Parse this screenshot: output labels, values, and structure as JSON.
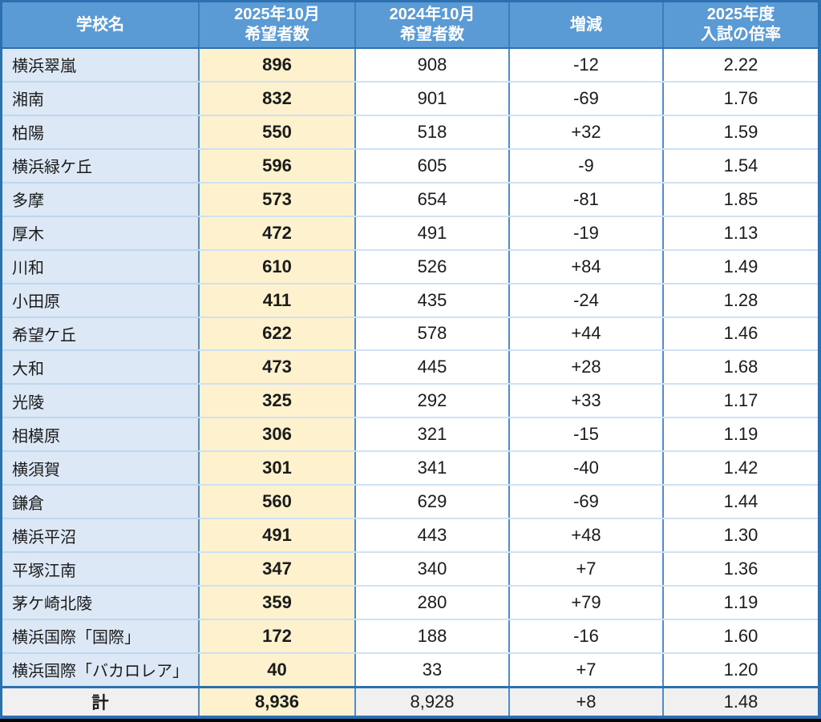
{
  "chart_data": {
    "type": "table",
    "title": "",
    "columns": [
      "学校名",
      "2025年10月\n希望者数",
      "2024年10月\n希望者数",
      "増減",
      "2025年度\n入試の倍率"
    ],
    "rows": [
      [
        "横浜翠嵐",
        "896",
        "908",
        "-12",
        "2.22"
      ],
      [
        "湘南",
        "832",
        "901",
        "-69",
        "1.76"
      ],
      [
        "柏陽",
        "550",
        "518",
        "+32",
        "1.59"
      ],
      [
        "横浜緑ケ丘",
        "596",
        "605",
        "-9",
        "1.54"
      ],
      [
        "多摩",
        "573",
        "654",
        "-81",
        "1.85"
      ],
      [
        "厚木",
        "472",
        "491",
        "-19",
        "1.13"
      ],
      [
        "川和",
        "610",
        "526",
        "+84",
        "1.49"
      ],
      [
        "小田原",
        "411",
        "435",
        "-24",
        "1.28"
      ],
      [
        "希望ケ丘",
        "622",
        "578",
        "+44",
        "1.46"
      ],
      [
        "大和",
        "473",
        "445",
        "+28",
        "1.68"
      ],
      [
        "光陵",
        "325",
        "292",
        "+33",
        "1.17"
      ],
      [
        "相模原",
        "306",
        "321",
        "-15",
        "1.19"
      ],
      [
        "横須賀",
        "301",
        "341",
        "-40",
        "1.42"
      ],
      [
        "鎌倉",
        "560",
        "629",
        "-69",
        "1.44"
      ],
      [
        "横浜平沼",
        "491",
        "443",
        "+48",
        "1.30"
      ],
      [
        "平塚江南",
        "347",
        "340",
        "+7",
        "1.36"
      ],
      [
        "茅ケ崎北陵",
        "359",
        "280",
        "+79",
        "1.19"
      ],
      [
        "横浜国際「国際」",
        "172",
        "188",
        "-16",
        "1.60"
      ],
      [
        "横浜国際「バカロレア」",
        "40",
        "33",
        "+7",
        "1.20"
      ]
    ],
    "total_row": [
      "計",
      "8,936",
      "8,928",
      "+8",
      "1.48"
    ],
    "legend_position": "none",
    "grid": true
  },
  "colors": {
    "header_bg": "#5B9BD5",
    "header_text": "#FFFFFF",
    "school_column_bg": "#DCE8F5",
    "highlight_column_bg": "#FDF2CD",
    "total_row_bg": "#F0F0F0",
    "outer_border": "#2C70B0",
    "vertical_grid": "#4F8CC9",
    "horizontal_grid": "#CFE2F5",
    "text": "#1B1B1B"
  }
}
